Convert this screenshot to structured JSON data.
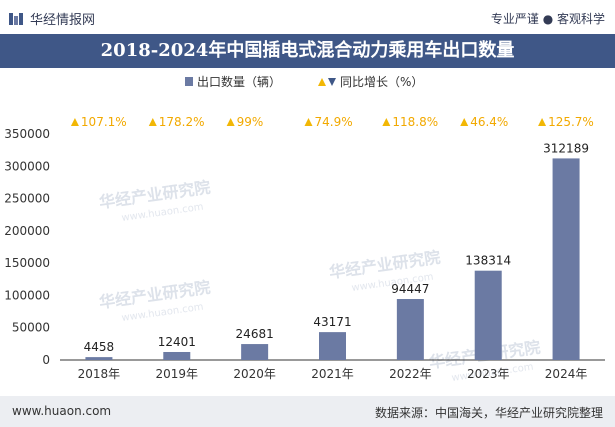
{
  "header": {
    "brand_name": "华经情报网",
    "tagline": "专业严谨 ● 客观科学"
  },
  "chart_title": "2018-2024年中国插电式混合动力乘用车出口数量",
  "watermark": "华经产业研究院",
  "watermark_url": "www.huaon.com",
  "footer": {
    "website": "www.huaon.com",
    "source": "数据来源：中国海关，华经产业研究院整理"
  },
  "colors": {
    "bar": "#6b7aa3",
    "growth_marker": "#f2b705",
    "growth_text": "#f2a900",
    "title_bg": "#3f5787",
    "footer_bg": "#eceef2"
  },
  "chart_data": {
    "type": "bar",
    "title": "2018-2024年中国插电式混合动力乘用车出口数量",
    "categories": [
      "2018年",
      "2019年",
      "2020年",
      "2021年",
      "2022年",
      "2023年",
      "2024年"
    ],
    "series": [
      {
        "name": "出口数量（辆）",
        "values": [
          4458,
          12401,
          24681,
          43171,
          94447,
          138314,
          312189
        ]
      }
    ],
    "growth": {
      "name": "同比增长（%）",
      "labels": [
        "107.1%",
        "178.2%",
        "99%",
        "74.9%",
        "118.8%",
        "46.4%",
        "125.7%"
      ]
    },
    "yticks": [
      "0",
      "50000",
      "100000",
      "150000",
      "200000",
      "250000",
      "300000",
      "350000"
    ],
    "ylim": [
      0,
      350000
    ],
    "legend_position": "top-center",
    "grid": false
  }
}
